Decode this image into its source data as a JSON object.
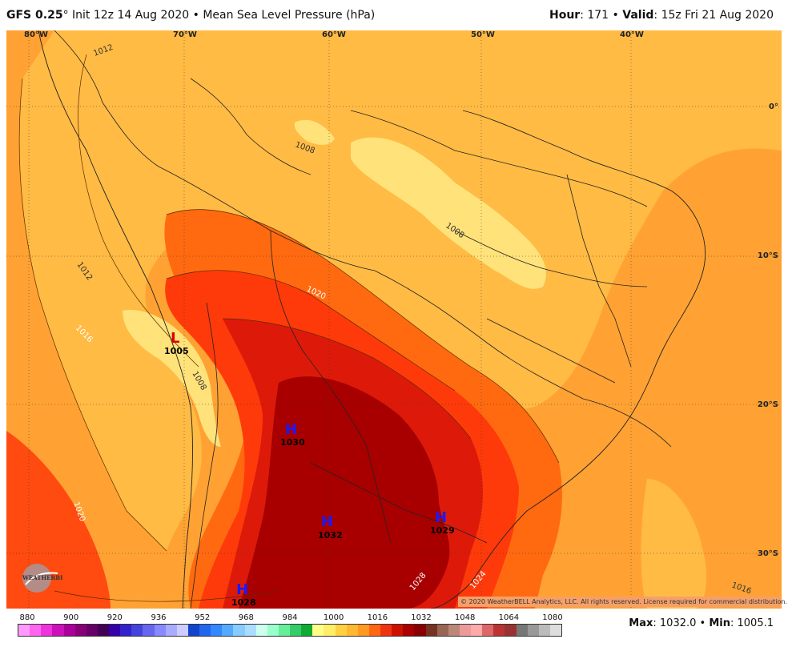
{
  "header": {
    "model": "GFS 0.25",
    "degree": "°",
    "init": "Init 12z 14 Aug 2020",
    "sep": "•",
    "field": "Mean Sea Level Pressure (hPa)",
    "hour_label": "Hour",
    "hour_value": ": 171",
    "valid_label": "Valid",
    "valid_value": ": 15z Fri 21 Aug 2020"
  },
  "axes": {
    "lon_labels": [
      "80°W",
      "70°W",
      "60°W",
      "50°W",
      "40°W"
    ],
    "lat_labels": [
      "0°",
      "10°S",
      "20°S",
      "30°S"
    ]
  },
  "contour_labels": [
    "1012",
    "1008",
    "1008",
    "1012",
    "1016",
    "1020",
    "1008",
    "1020",
    "1028",
    "1024",
    "1016"
  ],
  "pressure_centers": [
    {
      "type": "L",
      "value": "1005",
      "color": "#e00000"
    },
    {
      "type": "H",
      "value": "1030",
      "color": "#1a1aff"
    },
    {
      "type": "H",
      "value": "1032",
      "color": "#1a1aff"
    },
    {
      "type": "H",
      "value": "1029",
      "color": "#1a1aff"
    },
    {
      "type": "H",
      "value": "1028",
      "color": "#1a1aff"
    }
  ],
  "copyright": "© 2020 WeatherBELL Analytics, LLC. All rights reserved. License required for commercial distribution.",
  "logo_text": "WEATHERBELL",
  "colorbar": {
    "labels": [
      "880",
      "900",
      "920",
      "936",
      "952",
      "968",
      "984",
      "1000",
      "1016",
      "1032",
      "1048",
      "1064",
      "1080"
    ],
    "colors": [
      "#ff99ff",
      "#ff66ee",
      "#ee33dd",
      "#cc11bb",
      "#aa0099",
      "#880077",
      "#660066",
      "#440055",
      "#3300aa",
      "#3322cc",
      "#4444dd",
      "#6666ee",
      "#8888ff",
      "#aaaaff",
      "#ccccff",
      "#1144cc",
      "#2266ee",
      "#3388ff",
      "#55aaff",
      "#88ccff",
      "#aaddff",
      "#ccffee",
      "#99ffcc",
      "#66ee99",
      "#33cc66",
      "#11aa33",
      "#ffff88",
      "#ffee66",
      "#ffd040",
      "#ffb830",
      "#ff9922",
      "#ff6611",
      "#ee3311",
      "#cc1100",
      "#aa0000",
      "#880000",
      "#773322",
      "#996655",
      "#bb8877",
      "#ee9999",
      "#ffaaaa",
      "#dd6666",
      "#bb3333",
      "#993333",
      "#777777",
      "#999999",
      "#bbbbbb",
      "#dddddd"
    ]
  },
  "stats": {
    "max_label": "Max",
    "max_value": ": 1032.0",
    "sep": "•",
    "min_label": "Min",
    "min_value": ": 1005.1"
  }
}
